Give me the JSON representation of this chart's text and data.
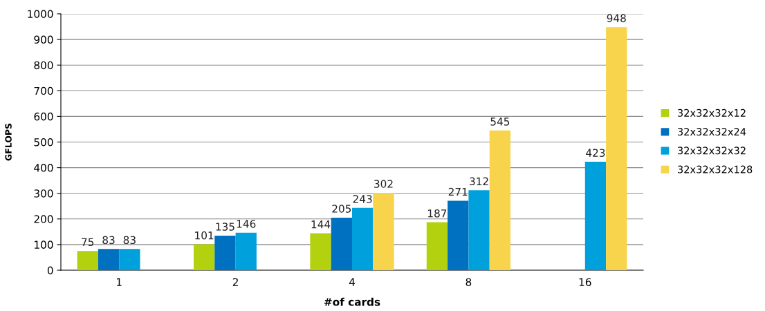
{
  "chart_data": {
    "type": "bar",
    "xlabel": "#of cards",
    "ylabel": "GFLOPS",
    "categories": [
      "1",
      "2",
      "4",
      "8",
      "16"
    ],
    "series": [
      {
        "name": "32x32x32x12",
        "color": "#b4d10f",
        "values": [
          75,
          101,
          144,
          187,
          null
        ]
      },
      {
        "name": "32x32x32x24",
        "color": "#0070c0",
        "values": [
          83,
          135,
          205,
          271,
          null
        ]
      },
      {
        "name": "32x32x32x32",
        "color": "#00a0dc",
        "values": [
          83,
          146,
          243,
          312,
          423
        ]
      },
      {
        "name": "32x32x32x128",
        "color": "#f7d44c",
        "values": [
          null,
          null,
          302,
          545,
          948
        ]
      }
    ],
    "ylim": [
      0,
      1000
    ],
    "yticks": [
      0,
      100,
      200,
      300,
      400,
      500,
      600,
      700,
      800,
      900,
      1000
    ],
    "grid": "y",
    "legend": "right",
    "data_labels": true
  }
}
